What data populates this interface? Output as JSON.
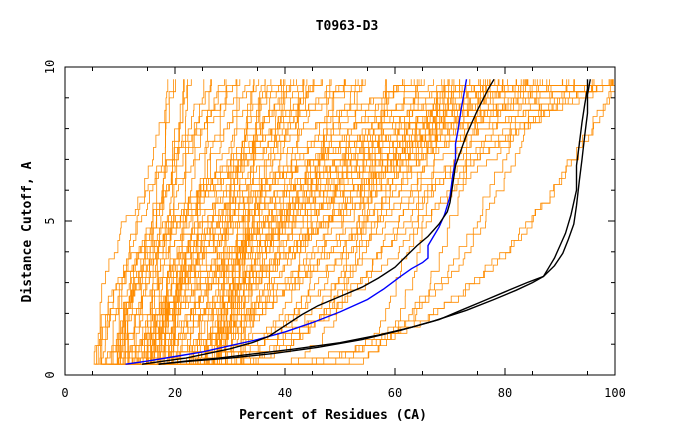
{
  "chart_data": {
    "type": "line",
    "title": "T0963-D3",
    "xlabel": "Percent of Residues (CA)",
    "ylabel": "Distance Cutoff, A",
    "xlim": [
      0,
      100
    ],
    "ylim": [
      0,
      10
    ],
    "x_ticks": [
      0,
      20,
      40,
      60,
      80,
      100
    ],
    "y_ticks": [
      0,
      5,
      10
    ],
    "grid": false,
    "background_series": {
      "color": "#ff8c00",
      "description_count": 120
    },
    "series": [
      {
        "color": "#0000ff",
        "points": [
          [
            11,
            0.35
          ],
          [
            15,
            0.45
          ],
          [
            20,
            0.6
          ],
          [
            25,
            0.75
          ],
          [
            30,
            0.95
          ],
          [
            35,
            1.15
          ],
          [
            40,
            1.4
          ],
          [
            45,
            1.7
          ],
          [
            50,
            2.05
          ],
          [
            55,
            2.45
          ],
          [
            58,
            2.8
          ],
          [
            61,
            3.2
          ],
          [
            63,
            3.45
          ],
          [
            65,
            3.65
          ],
          [
            66,
            3.8
          ],
          [
            66,
            4.2
          ],
          [
            67,
            4.5
          ],
          [
            68,
            4.8
          ],
          [
            69,
            5.2
          ],
          [
            70,
            5.8
          ],
          [
            70.5,
            6.5
          ],
          [
            71,
            7.0
          ],
          [
            71,
            7.5
          ],
          [
            71.5,
            8.0
          ],
          [
            72,
            8.6
          ],
          [
            72.5,
            9.1
          ],
          [
            73,
            9.6
          ]
        ]
      },
      {
        "color": "#000000",
        "points": [
          [
            14,
            0.35
          ],
          [
            18,
            0.45
          ],
          [
            22,
            0.55
          ],
          [
            26,
            0.7
          ],
          [
            30,
            0.85
          ],
          [
            34,
            1.05
          ],
          [
            37,
            1.25
          ],
          [
            40,
            1.6
          ],
          [
            43,
            1.95
          ],
          [
            46,
            2.25
          ],
          [
            50,
            2.55
          ],
          [
            54,
            2.85
          ],
          [
            57,
            3.15
          ],
          [
            60,
            3.5
          ],
          [
            62,
            3.85
          ],
          [
            64,
            4.2
          ],
          [
            66,
            4.5
          ],
          [
            68,
            4.9
          ],
          [
            69.5,
            5.3
          ],
          [
            70,
            5.6
          ],
          [
            70.5,
            6.2
          ],
          [
            71,
            6.8
          ],
          [
            72,
            7.3
          ],
          [
            73,
            7.8
          ],
          [
            74,
            8.2
          ],
          [
            75,
            8.6
          ],
          [
            76,
            8.95
          ],
          [
            77,
            9.3
          ],
          [
            78,
            9.6
          ]
        ]
      },
      {
        "color": "#000000",
        "points": [
          [
            17,
            0.35
          ],
          [
            22,
            0.45
          ],
          [
            28,
            0.55
          ],
          [
            35,
            0.7
          ],
          [
            42,
            0.85
          ],
          [
            50,
            1.05
          ],
          [
            57,
            1.3
          ],
          [
            63,
            1.55
          ],
          [
            68,
            1.8
          ],
          [
            72,
            2.1
          ],
          [
            76,
            2.4
          ],
          [
            80,
            2.7
          ],
          [
            84,
            3.0
          ],
          [
            87,
            3.2
          ],
          [
            88,
            3.5
          ],
          [
            89,
            3.8
          ],
          [
            90,
            4.2
          ],
          [
            91,
            4.6
          ],
          [
            92,
            5.2
          ],
          [
            93,
            6.0
          ],
          [
            93,
            6.8
          ],
          [
            93.5,
            7.5
          ],
          [
            94,
            8.2
          ],
          [
            94.5,
            8.8
          ],
          [
            95,
            9.3
          ],
          [
            95,
            9.6
          ]
        ]
      },
      {
        "color": "#000000",
        "points": [
          [
            17,
            0.35
          ],
          [
            23,
            0.45
          ],
          [
            30,
            0.55
          ],
          [
            38,
            0.7
          ],
          [
            46,
            0.9
          ],
          [
            54,
            1.15
          ],
          [
            61,
            1.45
          ],
          [
            67,
            1.75
          ],
          [
            73,
            2.1
          ],
          [
            78,
            2.45
          ],
          [
            82,
            2.75
          ],
          [
            85,
            3.0
          ],
          [
            87,
            3.2
          ],
          [
            89,
            3.55
          ],
          [
            90.5,
            3.95
          ],
          [
            91.5,
            4.4
          ],
          [
            92.5,
            4.9
          ],
          [
            93,
            5.5
          ],
          [
            93.5,
            6.3
          ],
          [
            94,
            7.0
          ],
          [
            94.5,
            7.8
          ],
          [
            95,
            8.5
          ],
          [
            95,
            9.1
          ],
          [
            95.5,
            9.6
          ]
        ]
      }
    ]
  }
}
